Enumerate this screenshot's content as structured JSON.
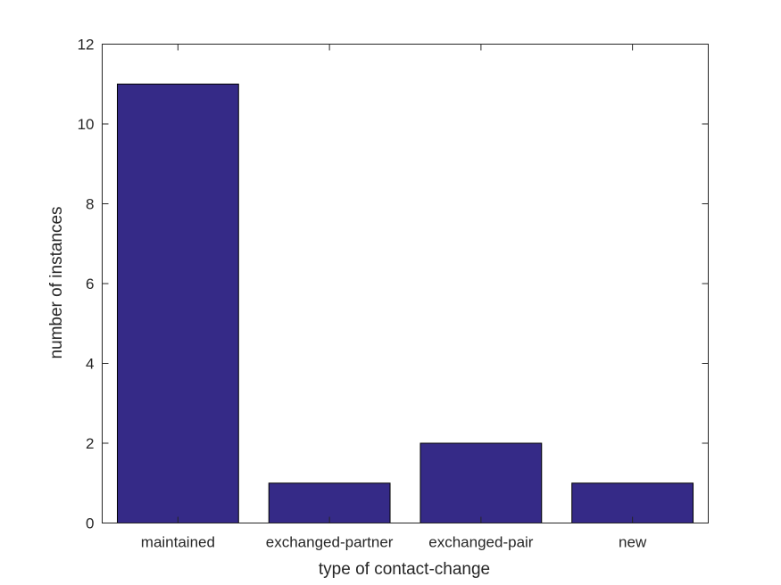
{
  "chart_data": {
    "type": "bar",
    "categories": [
      "maintained",
      "exchanged-partner",
      "exchanged-pair",
      "new"
    ],
    "values": [
      11,
      1,
      2,
      1
    ],
    "title": "",
    "xlabel": "type of contact-change",
    "ylabel": "number of instances",
    "ylim": [
      0,
      12
    ],
    "yticks": [
      0,
      2,
      4,
      6,
      8,
      10,
      12
    ],
    "grid": false,
    "bar_color": "#352a87"
  }
}
